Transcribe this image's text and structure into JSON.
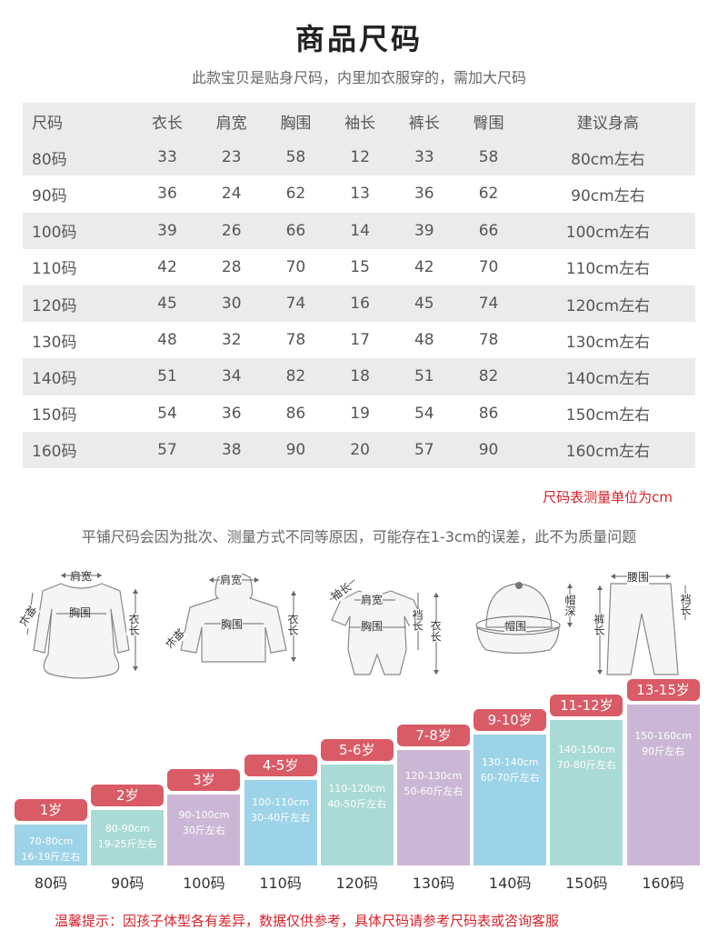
{
  "title": "商品尺码",
  "subtitle": "此款宝贝是贴身尺码，内里加衣服穿的，需加大尺码",
  "table": {
    "headers": [
      "尺码",
      "衣长",
      "肩宽",
      "胸围",
      "袖长",
      "裤长",
      "臀围",
      "建议身高"
    ],
    "rows": [
      [
        "80码",
        "33",
        "23",
        "58",
        "12",
        "33",
        "58",
        "80cm左右"
      ],
      [
        "90码",
        "36",
        "24",
        "62",
        "13",
        "36",
        "62",
        "90cm左右"
      ],
      [
        "100码",
        "39",
        "26",
        "66",
        "14",
        "39",
        "66",
        "100cm左右"
      ],
      [
        "110码",
        "42",
        "28",
        "70",
        "15",
        "42",
        "70",
        "110cm左右"
      ],
      [
        "120码",
        "45",
        "30",
        "74",
        "16",
        "45",
        "74",
        "120cm左右"
      ],
      [
        "130码",
        "48",
        "32",
        "78",
        "17",
        "48",
        "78",
        "130cm左右"
      ],
      [
        "140码",
        "51",
        "34",
        "82",
        "18",
        "51",
        "82",
        "140cm左右"
      ],
      [
        "150码",
        "54",
        "36",
        "86",
        "19",
        "54",
        "86",
        "150cm左右"
      ],
      [
        "160码",
        "57",
        "38",
        "90",
        "20",
        "57",
        "90",
        "160cm左右"
      ]
    ]
  },
  "unit_note": "尺码表测量单位为cm",
  "error_note": "平铺尺码会因为批次、测量方式不同等原因，可能存在1-3cm的误差，此不为质量问题",
  "diagrams": {
    "dress": {
      "shoulder": "肩宽",
      "sleeve": "袖长",
      "chest": "胸围",
      "length": "衣长"
    },
    "hoodie": {
      "shoulder": "肩宽",
      "sleeve": "袖长",
      "chest": "胸围",
      "length": "衣长"
    },
    "romper": {
      "sleeve": "袖长",
      "shoulder": "肩宽",
      "chest": "胸围",
      "crotch": "裆长",
      "length": "衣长"
    },
    "hat": {
      "circumference": "帽围",
      "depth": "帽深"
    },
    "pants": {
      "waist": "腰围",
      "length": "裤长",
      "crotch": "裆长"
    }
  },
  "age_chart": [
    {
      "age": "1岁",
      "height": "70-80cm",
      "weight": "16-19斤左右",
      "size": "80码",
      "color": "#9cd3e8",
      "level": 1
    },
    {
      "age": "2岁",
      "height": "80-90cm",
      "weight": "19-25斤左右",
      "size": "90码",
      "color": "#a9dad6",
      "level": 2
    },
    {
      "age": "3岁",
      "height": "90-100cm",
      "weight": "30斤左右",
      "size": "100码",
      "color": "#cbb7d5",
      "level": 3
    },
    {
      "age": "4-5岁",
      "height": "100-110cm",
      "weight": "30-40斤左右",
      "size": "110码",
      "color": "#9cd3e8",
      "level": 4
    },
    {
      "age": "5-6岁",
      "height": "110-120cm",
      "weight": "40-50斤左右",
      "size": "120码",
      "color": "#a9dad6",
      "level": 5
    },
    {
      "age": "7-8岁",
      "height": "120-130cm",
      "weight": "50-60斤左右",
      "size": "130码",
      "color": "#cbb7d5",
      "level": 6
    },
    {
      "age": "9-10岁",
      "height": "130-140cm",
      "weight": "60-70斤左右",
      "size": "140码",
      "color": "#9cd3e8",
      "level": 7
    },
    {
      "age": "11-12岁",
      "height": "140-150cm",
      "weight": "70-80斤左右",
      "size": "150码",
      "color": "#a9dad6",
      "level": 8
    },
    {
      "age": "13-15岁",
      "height": "150-160cm",
      "weight": "90斤左右",
      "size": "160码",
      "color": "#cbb7d5",
      "level": 9
    }
  ],
  "tip": "温馨提示：因孩子体型各有差异，数据仅供参考，具体尺码请参考尺码表或咨询客服",
  "accent_color": "#d95b66"
}
